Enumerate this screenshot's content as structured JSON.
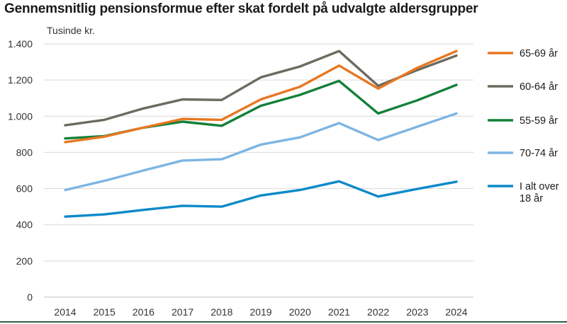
{
  "chart_data": {
    "type": "line",
    "title": "Gennemsnitlig pensionsformue efter skat fordelt på udvalgte aldersgrupper",
    "ylabel": "Tusinde kr.",
    "xlabel": "",
    "ylim": [
      0,
      1400
    ],
    "yticks": [
      0,
      200,
      400,
      600,
      800,
      1000,
      1200,
      1400
    ],
    "ytick_labels": [
      "0",
      "200",
      "400",
      "600",
      "800",
      "1.000",
      "1.200",
      "1.400"
    ],
    "categories": [
      "2014",
      "2015",
      "2016",
      "2017",
      "2018",
      "2019",
      "2020",
      "2021",
      "2022",
      "2023",
      "2024"
    ],
    "legend_position": "right",
    "grid": "horizontal",
    "series": [
      {
        "name": "65-69 år",
        "color": "#e87722",
        "values": [
          857,
          887,
          937,
          985,
          980,
          1093,
          1163,
          1280,
          1153,
          1268,
          1360
        ]
      },
      {
        "name": "60-64 år",
        "color": "#6b6b5f",
        "values": [
          950,
          980,
          1043,
          1093,
          1090,
          1215,
          1275,
          1360,
          1168,
          1255,
          1335
        ]
      },
      {
        "name": "55-59 år",
        "color": "#138039",
        "values": [
          877,
          890,
          937,
          970,
          947,
          1058,
          1118,
          1195,
          1015,
          1088,
          1173
        ]
      },
      {
        "name": "70-74 år",
        "color": "#7db5e3",
        "values": [
          592,
          643,
          700,
          755,
          762,
          843,
          883,
          962,
          868,
          942,
          1015
        ]
      },
      {
        "name": "I alt over 18 år",
        "name_lines": [
          "I alt over",
          "18 år"
        ],
        "color": "#0c8ac9",
        "values": [
          445,
          457,
          482,
          505,
          500,
          562,
          592,
          640,
          556,
          598,
          638
        ]
      }
    ]
  }
}
